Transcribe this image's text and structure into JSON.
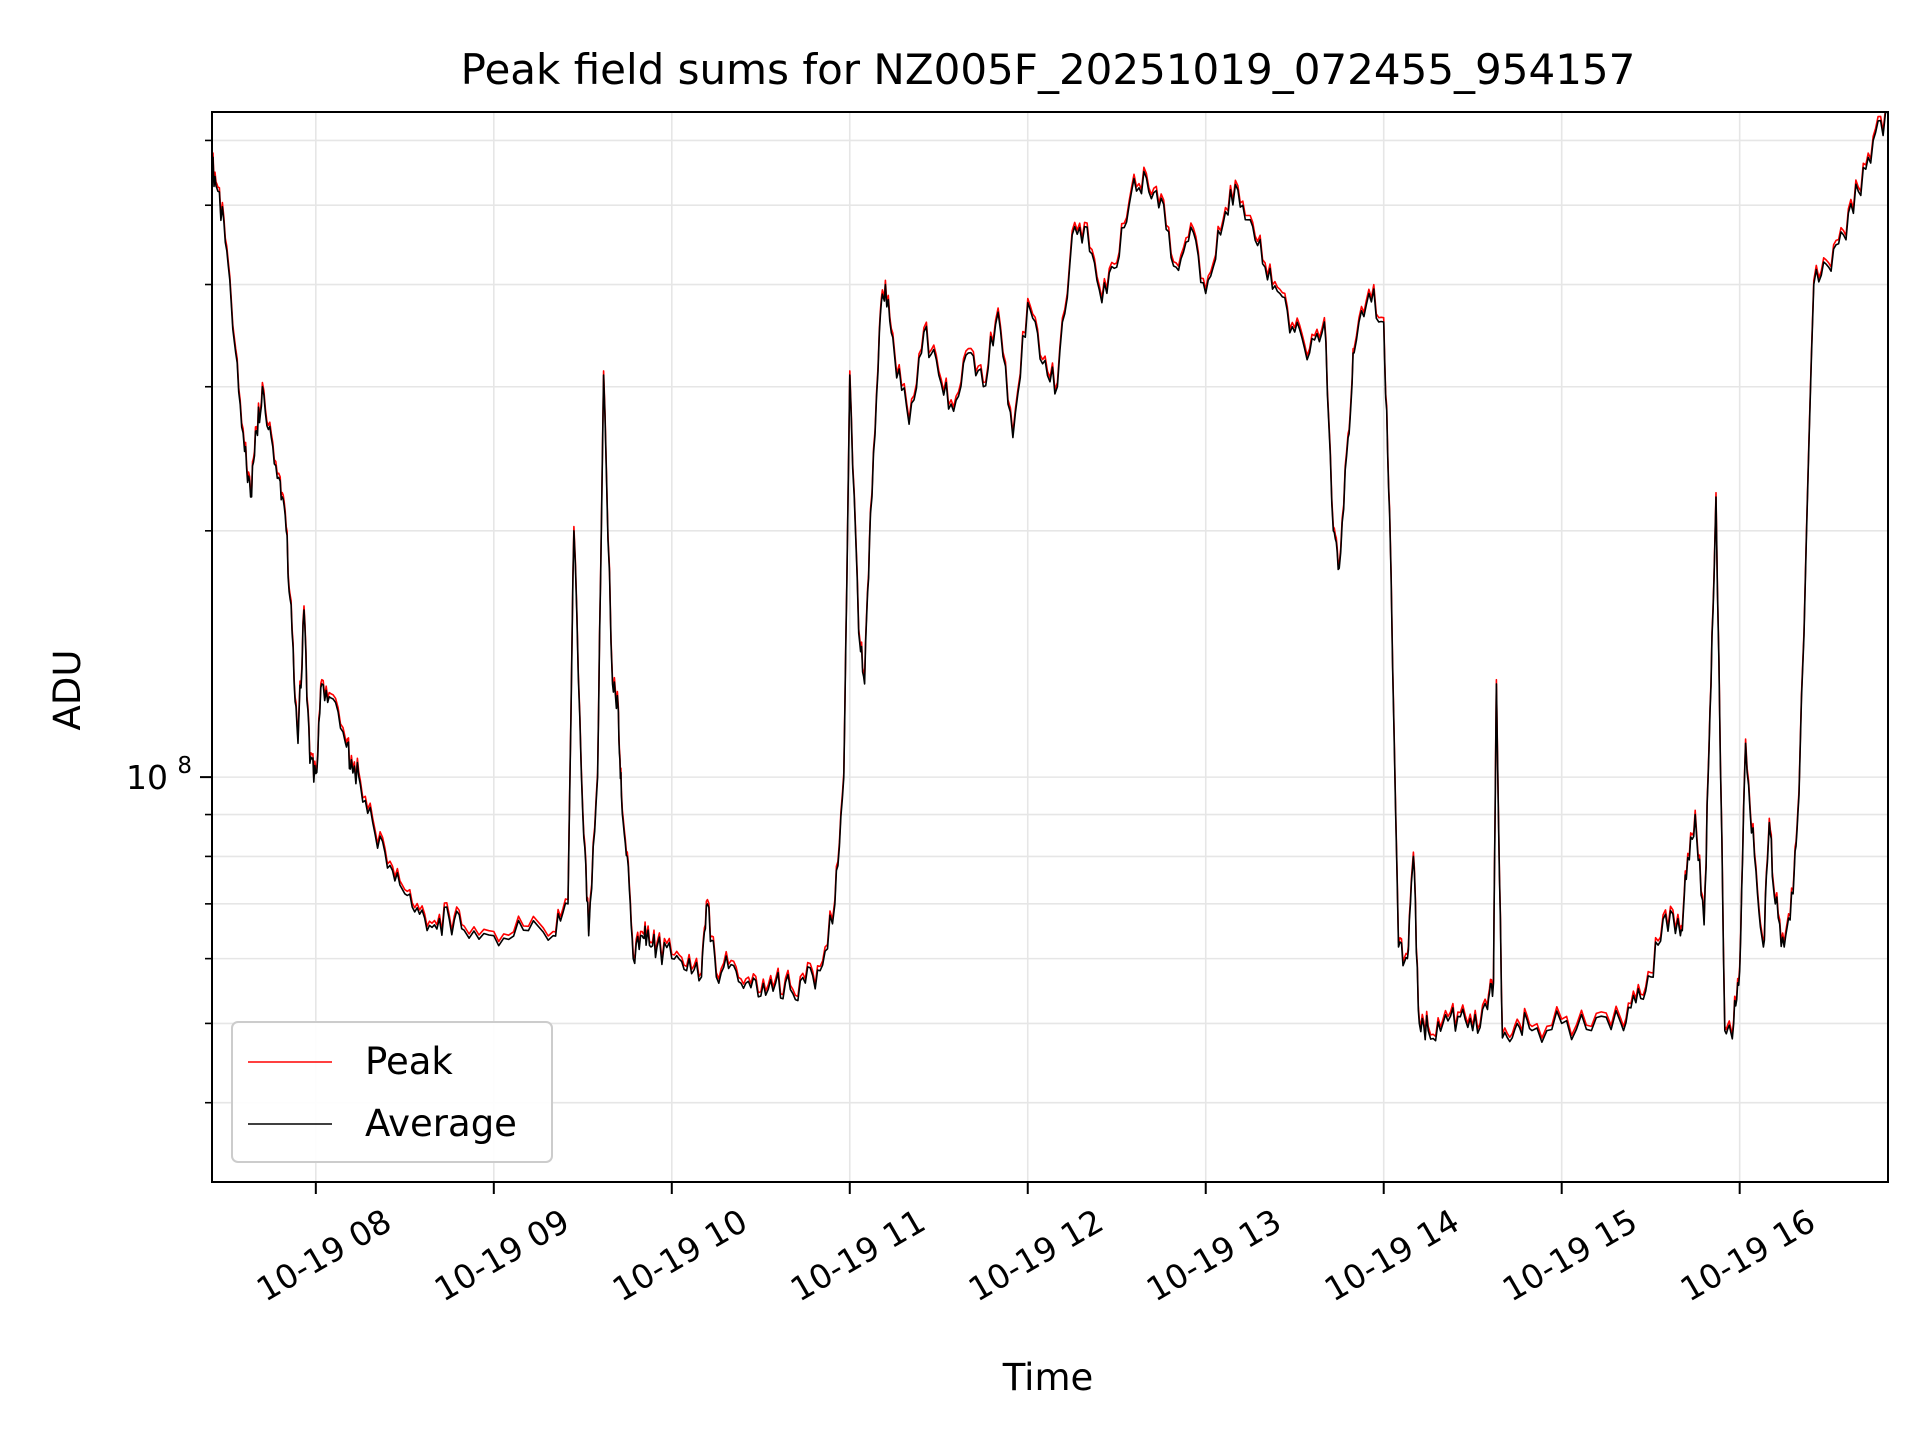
{
  "chart_data": {
    "type": "line",
    "title": "Peak field sums for NZ005F_20251019_072455_954157",
    "xlabel": "Time",
    "ylabel": "ADU",
    "y_scale": "log",
    "ylim": [
      32000000,
      650000000
    ],
    "xlim": [
      "2025-10-19 07:25",
      "2025-10-19 16:50"
    ],
    "x_ticks": [
      "2025-10-19 08:00",
      "2025-10-19 09:00",
      "2025-10-19 10:00",
      "2025-10-19 11:00",
      "2025-10-19 12:00",
      "2025-10-19 13:00",
      "2025-10-19 14:00",
      "2025-10-19 15:00",
      "2025-10-19 16:00"
    ],
    "x_tick_labels": [
      "10-19 08",
      "10-19 09",
      "10-19 10",
      "10-19 11",
      "10-19 12",
      "10-19 13",
      "10-19 14",
      "10-19 15",
      "10-19 16"
    ],
    "y_major_ticks": [
      100000000
    ],
    "y_major_tick_labels": [
      "10^8"
    ],
    "y_minor_gridlines": [
      40000000,
      50000000,
      60000000,
      70000000,
      80000000,
      90000000,
      200000000,
      300000000,
      400000000,
      500000000,
      600000000
    ],
    "grid": true,
    "legend_position": "lower-left",
    "series": [
      {
        "name": "Peak",
        "color": "#ff0000",
        "scale_to_average": 1.012
      },
      {
        "name": "Average",
        "color": "#000000",
        "x": [
          "2025-10-19 07:25",
          "2025-10-19 07:27",
          "2025-10-19 07:30",
          "2025-10-19 07:33",
          "2025-10-19 07:36",
          "2025-10-19 07:38",
          "2025-10-19 07:40",
          "2025-10-19 07:42",
          "2025-10-19 07:45",
          "2025-10-19 07:48",
          "2025-10-19 07:50",
          "2025-10-19 07:52",
          "2025-10-19 07:54",
          "2025-10-19 07:56",
          "2025-10-19 07:58",
          "2025-10-19 08:00",
          "2025-10-19 08:02",
          "2025-10-19 08:05",
          "2025-10-19 08:10",
          "2025-10-19 08:12",
          "2025-10-19 08:15",
          "2025-10-19 08:20",
          "2025-10-19 08:25",
          "2025-10-19 08:30",
          "2025-10-19 08:35",
          "2025-10-19 08:40",
          "2025-10-19 08:45",
          "2025-10-19 08:50",
          "2025-10-19 09:00",
          "2025-10-19 09:10",
          "2025-10-19 09:20",
          "2025-10-19 09:25",
          "2025-10-19 09:27",
          "2025-10-19 09:30",
          "2025-10-19 09:32",
          "2025-10-19 09:35",
          "2025-10-19 09:37",
          "2025-10-19 09:40",
          "2025-10-19 09:42",
          "2025-10-19 09:43",
          "2025-10-19 09:45",
          "2025-10-19 09:47",
          "2025-10-19 09:50",
          "2025-10-19 09:52",
          "2025-10-19 09:55",
          "2025-10-19 10:00",
          "2025-10-19 10:05",
          "2025-10-19 10:10",
          "2025-10-19 10:12",
          "2025-10-19 10:15",
          "2025-10-19 10:20",
          "2025-10-19 10:25",
          "2025-10-19 10:30",
          "2025-10-19 10:35",
          "2025-10-19 10:40",
          "2025-10-19 10:45",
          "2025-10-19 10:50",
          "2025-10-19 10:55",
          "2025-10-19 10:58",
          "2025-10-19 11:00",
          "2025-10-19 11:03",
          "2025-10-19 11:05",
          "2025-10-19 11:07",
          "2025-10-19 11:10",
          "2025-10-19 11:12",
          "2025-10-19 11:15",
          "2025-10-19 11:20",
          "2025-10-19 11:25",
          "2025-10-19 11:30",
          "2025-10-19 11:35",
          "2025-10-19 11:40",
          "2025-10-19 11:45",
          "2025-10-19 11:50",
          "2025-10-19 11:55",
          "2025-10-19 12:00",
          "2025-10-19 12:05",
          "2025-10-19 12:10",
          "2025-10-19 12:15",
          "2025-10-19 12:20",
          "2025-10-19 12:25",
          "2025-10-19 12:30",
          "2025-10-19 12:35",
          "2025-10-19 12:40",
          "2025-10-19 12:45",
          "2025-10-19 12:50",
          "2025-10-19 12:55",
          "2025-10-19 13:00",
          "2025-10-19 13:05",
          "2025-10-19 13:10",
          "2025-10-19 13:15",
          "2025-10-19 13:20",
          "2025-10-19 13:25",
          "2025-10-19 13:30",
          "2025-10-19 13:35",
          "2025-10-19 13:40",
          "2025-10-19 13:43",
          "2025-10-19 13:45",
          "2025-10-19 13:48",
          "2025-10-19 13:50",
          "2025-10-19 13:55",
          "2025-10-19 14:00",
          "2025-10-19 14:02",
          "2025-10-19 14:05",
          "2025-10-19 14:08",
          "2025-10-19 14:10",
          "2025-10-19 14:12",
          "2025-10-19 14:15",
          "2025-10-19 14:20",
          "2025-10-19 14:25",
          "2025-10-19 14:30",
          "2025-10-19 14:35",
          "2025-10-19 14:37",
          "2025-10-19 14:38",
          "2025-10-19 14:40",
          "2025-10-19 14:45",
          "2025-10-19 14:50",
          "2025-10-19 15:00",
          "2025-10-19 15:10",
          "2025-10-19 15:20",
          "2025-10-19 15:25",
          "2025-10-19 15:30",
          "2025-10-19 15:35",
          "2025-10-19 15:40",
          "2025-10-19 15:42",
          "2025-10-19 15:45",
          "2025-10-19 15:48",
          "2025-10-19 15:50",
          "2025-10-19 15:52",
          "2025-10-19 15:55",
          "2025-10-19 15:58",
          "2025-10-19 16:00",
          "2025-10-19 16:02",
          "2025-10-19 16:05",
          "2025-10-19 16:08",
          "2025-10-19 16:10",
          "2025-10-19 16:12",
          "2025-10-19 16:15",
          "2025-10-19 16:18",
          "2025-10-19 16:20",
          "2025-10-19 16:25",
          "2025-10-19 16:30",
          "2025-10-19 16:35",
          "2025-10-19 16:40",
          "2025-10-19 16:45",
          "2025-10-19 16:50"
        ],
        "values": [
          560000000,
          520000000,
          440000000,
          330000000,
          250000000,
          220000000,
          265000000,
          300000000,
          260000000,
          230000000,
          200000000,
          150000000,
          110000000,
          160000000,
          104000000,
          101000000,
          130000000,
          125000000,
          110000000,
          105000000,
          98000000,
          85000000,
          78000000,
          72000000,
          68000000,
          66000000,
          67000000,
          65000000,
          64000000,
          65000000,
          64000000,
          70000000,
          200000000,
          90000000,
          64000000,
          100000000,
          310000000,
          130000000,
          120000000,
          95000000,
          80000000,
          60000000,
          64000000,
          65000000,
          62000000,
          60000000,
          58000000,
          57000000,
          70000000,
          57000000,
          59000000,
          56000000,
          54000000,
          56000000,
          55000000,
          56000000,
          58000000,
          70000000,
          100000000,
          310000000,
          150000000,
          130000000,
          210000000,
          350000000,
          400000000,
          330000000,
          270000000,
          350000000,
          310000000,
          280000000,
          330000000,
          300000000,
          370000000,
          260000000,
          380000000,
          320000000,
          300000000,
          460000000,
          470000000,
          380000000,
          420000000,
          520000000,
          540000000,
          510000000,
          420000000,
          470000000,
          390000000,
          460000000,
          530000000,
          480000000,
          420000000,
          390000000,
          350000000,
          330000000,
          360000000,
          200000000,
          180000000,
          260000000,
          330000000,
          390000000,
          360000000,
          210000000,
          62000000,
          60000000,
          80000000,
          50000000,
          49000000,
          50000000,
          51000000,
          49000000,
          52000000,
          56000000,
          130000000,
          48000000,
          50000000,
          49000000,
          50000000,
          49000000,
          50000000,
          53000000,
          57000000,
          68000000,
          64000000,
          75000000,
          90000000,
          66000000,
          120000000,
          220000000,
          49000000,
          50000000,
          58000000,
          110000000,
          80000000,
          62000000,
          88000000,
          70000000,
          62000000,
          72000000,
          95000000,
          400000000,
          420000000,
          460000000,
          520000000,
          600000000,
          650000000
        ]
      }
    ]
  }
}
